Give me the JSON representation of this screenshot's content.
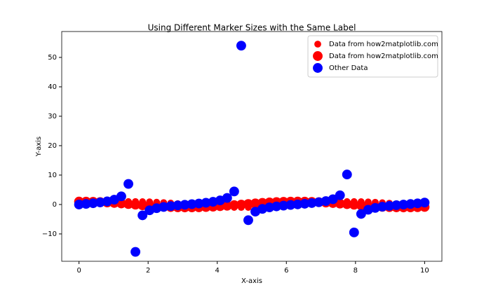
{
  "chart_data": {
    "type": "scatter",
    "title": "Using Different Marker Sizes with the Same Label",
    "x_label": "X-axis",
    "y_label": "Y-axis",
    "x": [
      0,
      0.204,
      0.408,
      0.612,
      0.816,
      1.02,
      1.224,
      1.429,
      1.633,
      1.837,
      2.041,
      2.245,
      2.449,
      2.653,
      2.857,
      3.061,
      3.265,
      3.469,
      3.673,
      3.878,
      4.082,
      4.286,
      4.49,
      4.694,
      4.898,
      5.102,
      5.306,
      5.51,
      5.714,
      5.918,
      6.122,
      6.327,
      6.531,
      6.735,
      6.939,
      7.143,
      7.347,
      7.551,
      7.755,
      7.959,
      8.163,
      8.367,
      8.571,
      8.776,
      8.98,
      9.184,
      9.388,
      9.592,
      9.796,
      10
    ],
    "series": [
      {
        "name": "Data from how2matplotlib.com",
        "color": "#ff0000",
        "marker_size": 50,
        "values": [
          0,
          0.2,
          0.4,
          0.57,
          0.73,
          0.85,
          0.94,
          0.99,
          1.0,
          0.96,
          0.89,
          0.78,
          0.64,
          0.47,
          0.28,
          0.08,
          -0.12,
          -0.32,
          -0.51,
          -0.67,
          -0.81,
          -0.91,
          -0.98,
          -1.0,
          -0.98,
          -0.93,
          -0.83,
          -0.7,
          -0.54,
          -0.36,
          -0.16,
          0.04,
          0.24,
          0.44,
          0.61,
          0.76,
          0.87,
          0.95,
          0.99,
          0.99,
          0.95,
          0.87,
          0.76,
          0.6,
          0.43,
          0.23,
          0.03,
          -0.17,
          -0.37,
          -0.54
        ]
      },
      {
        "name": "Data from how2matplotlib.com",
        "color": "#ff0000",
        "marker_size": 100,
        "values": [
          1,
          0.98,
          0.92,
          0.82,
          0.69,
          0.52,
          0.34,
          0.14,
          -0.06,
          -0.26,
          -0.45,
          -0.62,
          -0.77,
          -0.88,
          -0.96,
          -1.0,
          -0.99,
          -0.95,
          -0.86,
          -0.74,
          -0.58,
          -0.41,
          -0.22,
          -0.02,
          0.18,
          0.38,
          0.56,
          0.71,
          0.84,
          0.93,
          0.99,
          1.0,
          0.97,
          0.9,
          0.79,
          0.65,
          0.49,
          0.3,
          0.1,
          -0.1,
          -0.3,
          -0.49,
          -0.65,
          -0.8,
          -0.9,
          -0.97,
          -1.0,
          -0.99,
          -0.93,
          -0.84
        ]
      },
      {
        "name": "Other Data",
        "color": "#0000ff",
        "marker_size": 100,
        "values": [
          0,
          0.21,
          0.43,
          0.7,
          1.06,
          1.64,
          2.78,
          7.0,
          -16.1,
          -3.68,
          -1.97,
          -1.25,
          -0.83,
          -0.53,
          -0.29,
          -0.08,
          0.12,
          0.34,
          0.59,
          0.91,
          1.39,
          2.23,
          4.44,
          54.0,
          -5.32,
          -2.43,
          -1.48,
          -0.98,
          -0.64,
          -0.39,
          -0.16,
          0.04,
          0.25,
          0.49,
          0.77,
          1.17,
          1.78,
          3.14,
          10.2,
          -9.5,
          -3.2,
          -1.78,
          -1.16,
          -0.75,
          -0.48,
          -0.24,
          -0.03,
          0.17,
          0.4,
          0.65
        ]
      }
    ],
    "xlim": [
      -0.5,
      10.5
    ],
    "xticks": [
      0,
      2,
      4,
      6,
      8,
      10
    ],
    "ylim": [
      -19.3,
      58.8
    ],
    "yticks": [
      {
        "value": -10,
        "label": "−10"
      },
      0,
      10,
      20,
      30,
      40,
      50
    ],
    "legend": "upper right"
  }
}
